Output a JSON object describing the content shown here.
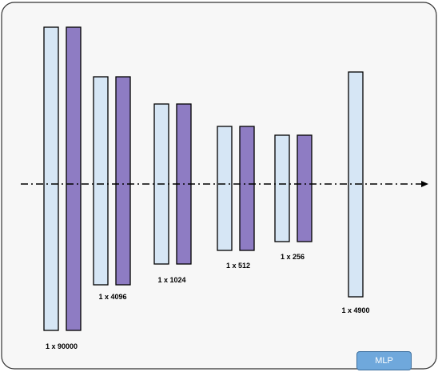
{
  "colors": {
    "frame_fill": "#f7f7f7",
    "frame_stroke": "#333333",
    "input_bar_fill": "#d6e6f5",
    "input_bar_stroke": "#000000",
    "hidden_bar_fill": "#8e7cc3",
    "hidden_bar_stroke": "#000000",
    "flow_line": "#000000",
    "badge_fill": "#6fa8dc",
    "badge_text": "#ffffff"
  },
  "layers": [
    {
      "label": "1 x 90000",
      "bars": [
        "light",
        "purple"
      ]
    },
    {
      "label": "1 x 4096",
      "bars": [
        "light",
        "purple"
      ]
    },
    {
      "label": "1 x 1024",
      "bars": [
        "light",
        "purple"
      ]
    },
    {
      "label": "1 x 512",
      "bars": [
        "light",
        "purple"
      ]
    },
    {
      "label": "1 x 256",
      "bars": [
        "light",
        "purple"
      ]
    },
    {
      "label": "1 x 4900",
      "bars": [
        "light"
      ]
    }
  ],
  "badge": {
    "label": "MLP"
  }
}
